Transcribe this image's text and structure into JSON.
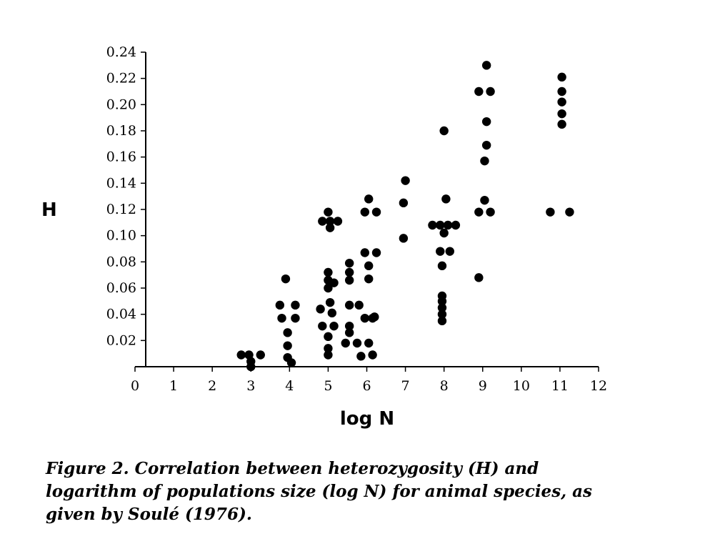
{
  "chart_data": {
    "type": "scatter",
    "title": "",
    "xlabel": "log N",
    "ylabel": "H",
    "xlim": [
      0,
      12
    ],
    "ylim": [
      0,
      0.24
    ],
    "xticks": [
      "0",
      "1",
      "2",
      "3",
      "4",
      "5",
      "6",
      "7",
      "8",
      "9",
      "10",
      "11",
      "12"
    ],
    "yticks": [
      "0.02",
      "0.04",
      "0.06",
      "0.08",
      "0.10",
      "0.12",
      "0.14",
      "0.16",
      "0.18",
      "0.20",
      "0.22",
      "0.24"
    ],
    "grid": false,
    "legend": "none",
    "marker_color": "#000000",
    "points": [
      {
        "x": 2.75,
        "y": 0.009
      },
      {
        "x": 2.95,
        "y": 0.009
      },
      {
        "x": 3.25,
        "y": 0.009
      },
      {
        "x": 3.0,
        "y": 0.004
      },
      {
        "x": 3.0,
        "y": 0.0
      },
      {
        "x": 3.9,
        "y": 0.067
      },
      {
        "x": 3.75,
        "y": 0.047
      },
      {
        "x": 4.15,
        "y": 0.047
      },
      {
        "x": 3.8,
        "y": 0.037
      },
      {
        "x": 4.15,
        "y": 0.037
      },
      {
        "x": 3.95,
        "y": 0.026
      },
      {
        "x": 3.95,
        "y": 0.016
      },
      {
        "x": 3.95,
        "y": 0.007
      },
      {
        "x": 4.05,
        "y": 0.003
      },
      {
        "x": 4.85,
        "y": 0.111
      },
      {
        "x": 5.05,
        "y": 0.111
      },
      {
        "x": 5.25,
        "y": 0.111
      },
      {
        "x": 5.0,
        "y": 0.118
      },
      {
        "x": 5.05,
        "y": 0.106
      },
      {
        "x": 5.0,
        "y": 0.072
      },
      {
        "x": 5.0,
        "y": 0.066
      },
      {
        "x": 5.15,
        "y": 0.064
      },
      {
        "x": 5.0,
        "y": 0.06
      },
      {
        "x": 5.05,
        "y": 0.049
      },
      {
        "x": 4.8,
        "y": 0.044
      },
      {
        "x": 5.1,
        "y": 0.041
      },
      {
        "x": 4.85,
        "y": 0.031
      },
      {
        "x": 5.15,
        "y": 0.031
      },
      {
        "x": 5.0,
        "y": 0.023
      },
      {
        "x": 5.0,
        "y": 0.014
      },
      {
        "x": 5.0,
        "y": 0.009
      },
      {
        "x": 5.55,
        "y": 0.079
      },
      {
        "x": 5.55,
        "y": 0.072
      },
      {
        "x": 5.55,
        "y": 0.066
      },
      {
        "x": 5.55,
        "y": 0.047
      },
      {
        "x": 5.8,
        "y": 0.047
      },
      {
        "x": 5.55,
        "y": 0.031
      },
      {
        "x": 5.55,
        "y": 0.026
      },
      {
        "x": 5.45,
        "y": 0.018
      },
      {
        "x": 5.75,
        "y": 0.018
      },
      {
        "x": 5.85,
        "y": 0.008
      },
      {
        "x": 6.05,
        "y": 0.128
      },
      {
        "x": 5.95,
        "y": 0.118
      },
      {
        "x": 6.25,
        "y": 0.118
      },
      {
        "x": 5.95,
        "y": 0.087
      },
      {
        "x": 6.25,
        "y": 0.087
      },
      {
        "x": 6.05,
        "y": 0.077
      },
      {
        "x": 6.05,
        "y": 0.067
      },
      {
        "x": 5.95,
        "y": 0.037
      },
      {
        "x": 6.15,
        "y": 0.037
      },
      {
        "x": 6.2,
        "y": 0.038
      },
      {
        "x": 6.05,
        "y": 0.018
      },
      {
        "x": 6.15,
        "y": 0.009
      },
      {
        "x": 7.0,
        "y": 0.142
      },
      {
        "x": 6.95,
        "y": 0.125
      },
      {
        "x": 6.95,
        "y": 0.098
      },
      {
        "x": 8.0,
        "y": 0.18
      },
      {
        "x": 8.05,
        "y": 0.128
      },
      {
        "x": 7.7,
        "y": 0.108
      },
      {
        "x": 7.9,
        "y": 0.108
      },
      {
        "x": 8.1,
        "y": 0.108
      },
      {
        "x": 8.3,
        "y": 0.108
      },
      {
        "x": 8.0,
        "y": 0.102
      },
      {
        "x": 7.9,
        "y": 0.088
      },
      {
        "x": 8.15,
        "y": 0.088
      },
      {
        "x": 7.95,
        "y": 0.077
      },
      {
        "x": 7.95,
        "y": 0.054
      },
      {
        "x": 7.95,
        "y": 0.05
      },
      {
        "x": 7.95,
        "y": 0.045
      },
      {
        "x": 7.95,
        "y": 0.04
      },
      {
        "x": 7.95,
        "y": 0.035
      },
      {
        "x": 9.1,
        "y": 0.23
      },
      {
        "x": 8.9,
        "y": 0.21
      },
      {
        "x": 9.2,
        "y": 0.21
      },
      {
        "x": 9.1,
        "y": 0.187
      },
      {
        "x": 9.1,
        "y": 0.169
      },
      {
        "x": 9.05,
        "y": 0.157
      },
      {
        "x": 9.05,
        "y": 0.127
      },
      {
        "x": 8.9,
        "y": 0.118
      },
      {
        "x": 9.2,
        "y": 0.118
      },
      {
        "x": 8.9,
        "y": 0.068
      },
      {
        "x": 11.05,
        "y": 0.221
      },
      {
        "x": 11.05,
        "y": 0.21
      },
      {
        "x": 11.05,
        "y": 0.202
      },
      {
        "x": 11.05,
        "y": 0.193
      },
      {
        "x": 11.05,
        "y": 0.185
      },
      {
        "x": 10.75,
        "y": 0.118
      },
      {
        "x": 11.25,
        "y": 0.118
      }
    ]
  },
  "caption": "Figure 2.  Correlation between heterozygosity (H) and logarithm of populations size (log N) for animal species, as given by Soulé (1976)."
}
